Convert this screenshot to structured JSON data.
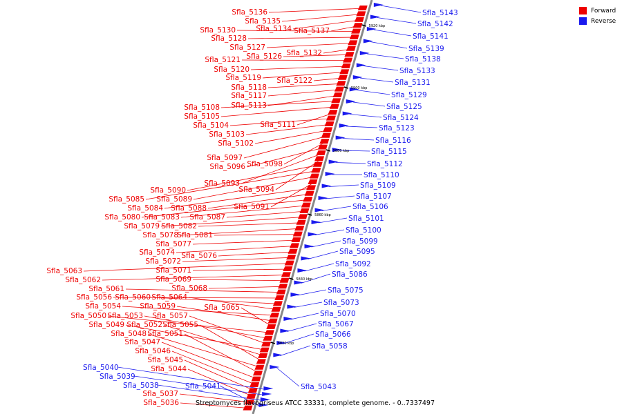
{
  "caption": "Streptomyces flavogriseus ATCC 33331, complete genome. - 0..7337497",
  "legend": [
    {
      "label": "Forward",
      "color": "#ee0000"
    },
    {
      "label": "Reverse",
      "color": "#1a1aee"
    }
  ],
  "colors": {
    "forward": "#ee0000",
    "reverse": "#1a1aee",
    "backbone": "#888888"
  },
  "scale_marks": [
    "5820 kbp",
    "5840 kbp",
    "5860 kbp",
    "5880 kbp",
    "5900 kbp",
    "5920 kbp"
  ],
  "forward_labels": [
    "Sfla_5136",
    "Sfla_5135",
    "Sfla_5134",
    "Sfla_5137",
    "Sfla_5130",
    "Sfla_5128",
    "Sfla_5127",
    "Sfla_5132",
    "Sfla_5126",
    "Sfla_5121",
    "Sfla_5120",
    "Sfla_5119",
    "Sfla_5122",
    "Sfla_5118",
    "Sfla_5117",
    "Sfla_5113",
    "Sfla_5108",
    "Sfla_5105",
    "Sfla_5111",
    "Sfla_5104",
    "Sfla_5103",
    "Sfla_5102",
    "Sfla_5097",
    "Sfla_5098",
    "Sfla_5096",
    "Sfla_5093",
    "Sfla_5094",
    "Sfla_5090",
    "Sfla_5085",
    "Sfla_5089",
    "Sfla_5091",
    "Sfla_5084",
    "Sfla_5088",
    "Sfla_5080",
    "Sfla_5083",
    "Sfla_5087",
    "Sfla_5079",
    "Sfla_5082",
    "Sfla_5078",
    "Sfla_5081",
    "Sfla_5077",
    "Sfla_5074",
    "Sfla_5076",
    "Sfla_5072",
    "Sfla_5063",
    "Sfla_5071",
    "Sfla_5062",
    "Sfla_5069",
    "Sfla_5068",
    "Sfla_5061",
    "Sfla_5056",
    "Sfla_5060",
    "Sfla_5064",
    "Sfla_5054",
    "Sfla_5059",
    "Sfla_5065",
    "Sfla_5050",
    "Sfla_5053",
    "Sfla_5057",
    "Sfla_5049",
    "Sfla_5052",
    "Sfla_5055",
    "Sfla_5048",
    "Sfla_5051",
    "Sfla_5047",
    "Sfla_5046",
    "Sfla_5045",
    "Sfla_5044",
    "Sfla_5037",
    "Sfla_5036"
  ],
  "reverse_labels": [
    "Sfla_5143",
    "Sfla_5142",
    "Sfla_5141",
    "Sfla_5139",
    "Sfla_5138",
    "Sfla_5133",
    "Sfla_5131",
    "Sfla_5129",
    "Sfla_5125",
    "Sfla_5124",
    "Sfla_5123",
    "Sfla_5116",
    "Sfla_5115",
    "Sfla_5112",
    "Sfla_5110",
    "Sfla_5109",
    "Sfla_5107",
    "Sfla_5106",
    "Sfla_5101",
    "Sfla_5100",
    "Sfla_5099",
    "Sfla_5095",
    "Sfla_5092",
    "Sfla_5086",
    "Sfla_5075",
    "Sfla_5073",
    "Sfla_5070",
    "Sfla_5067",
    "Sfla_5066",
    "Sfla_5058",
    "Sfla_5043",
    "Sfla_5040",
    "Sfla_5039",
    "Sfla_5038",
    "Sfla_5041"
  ]
}
